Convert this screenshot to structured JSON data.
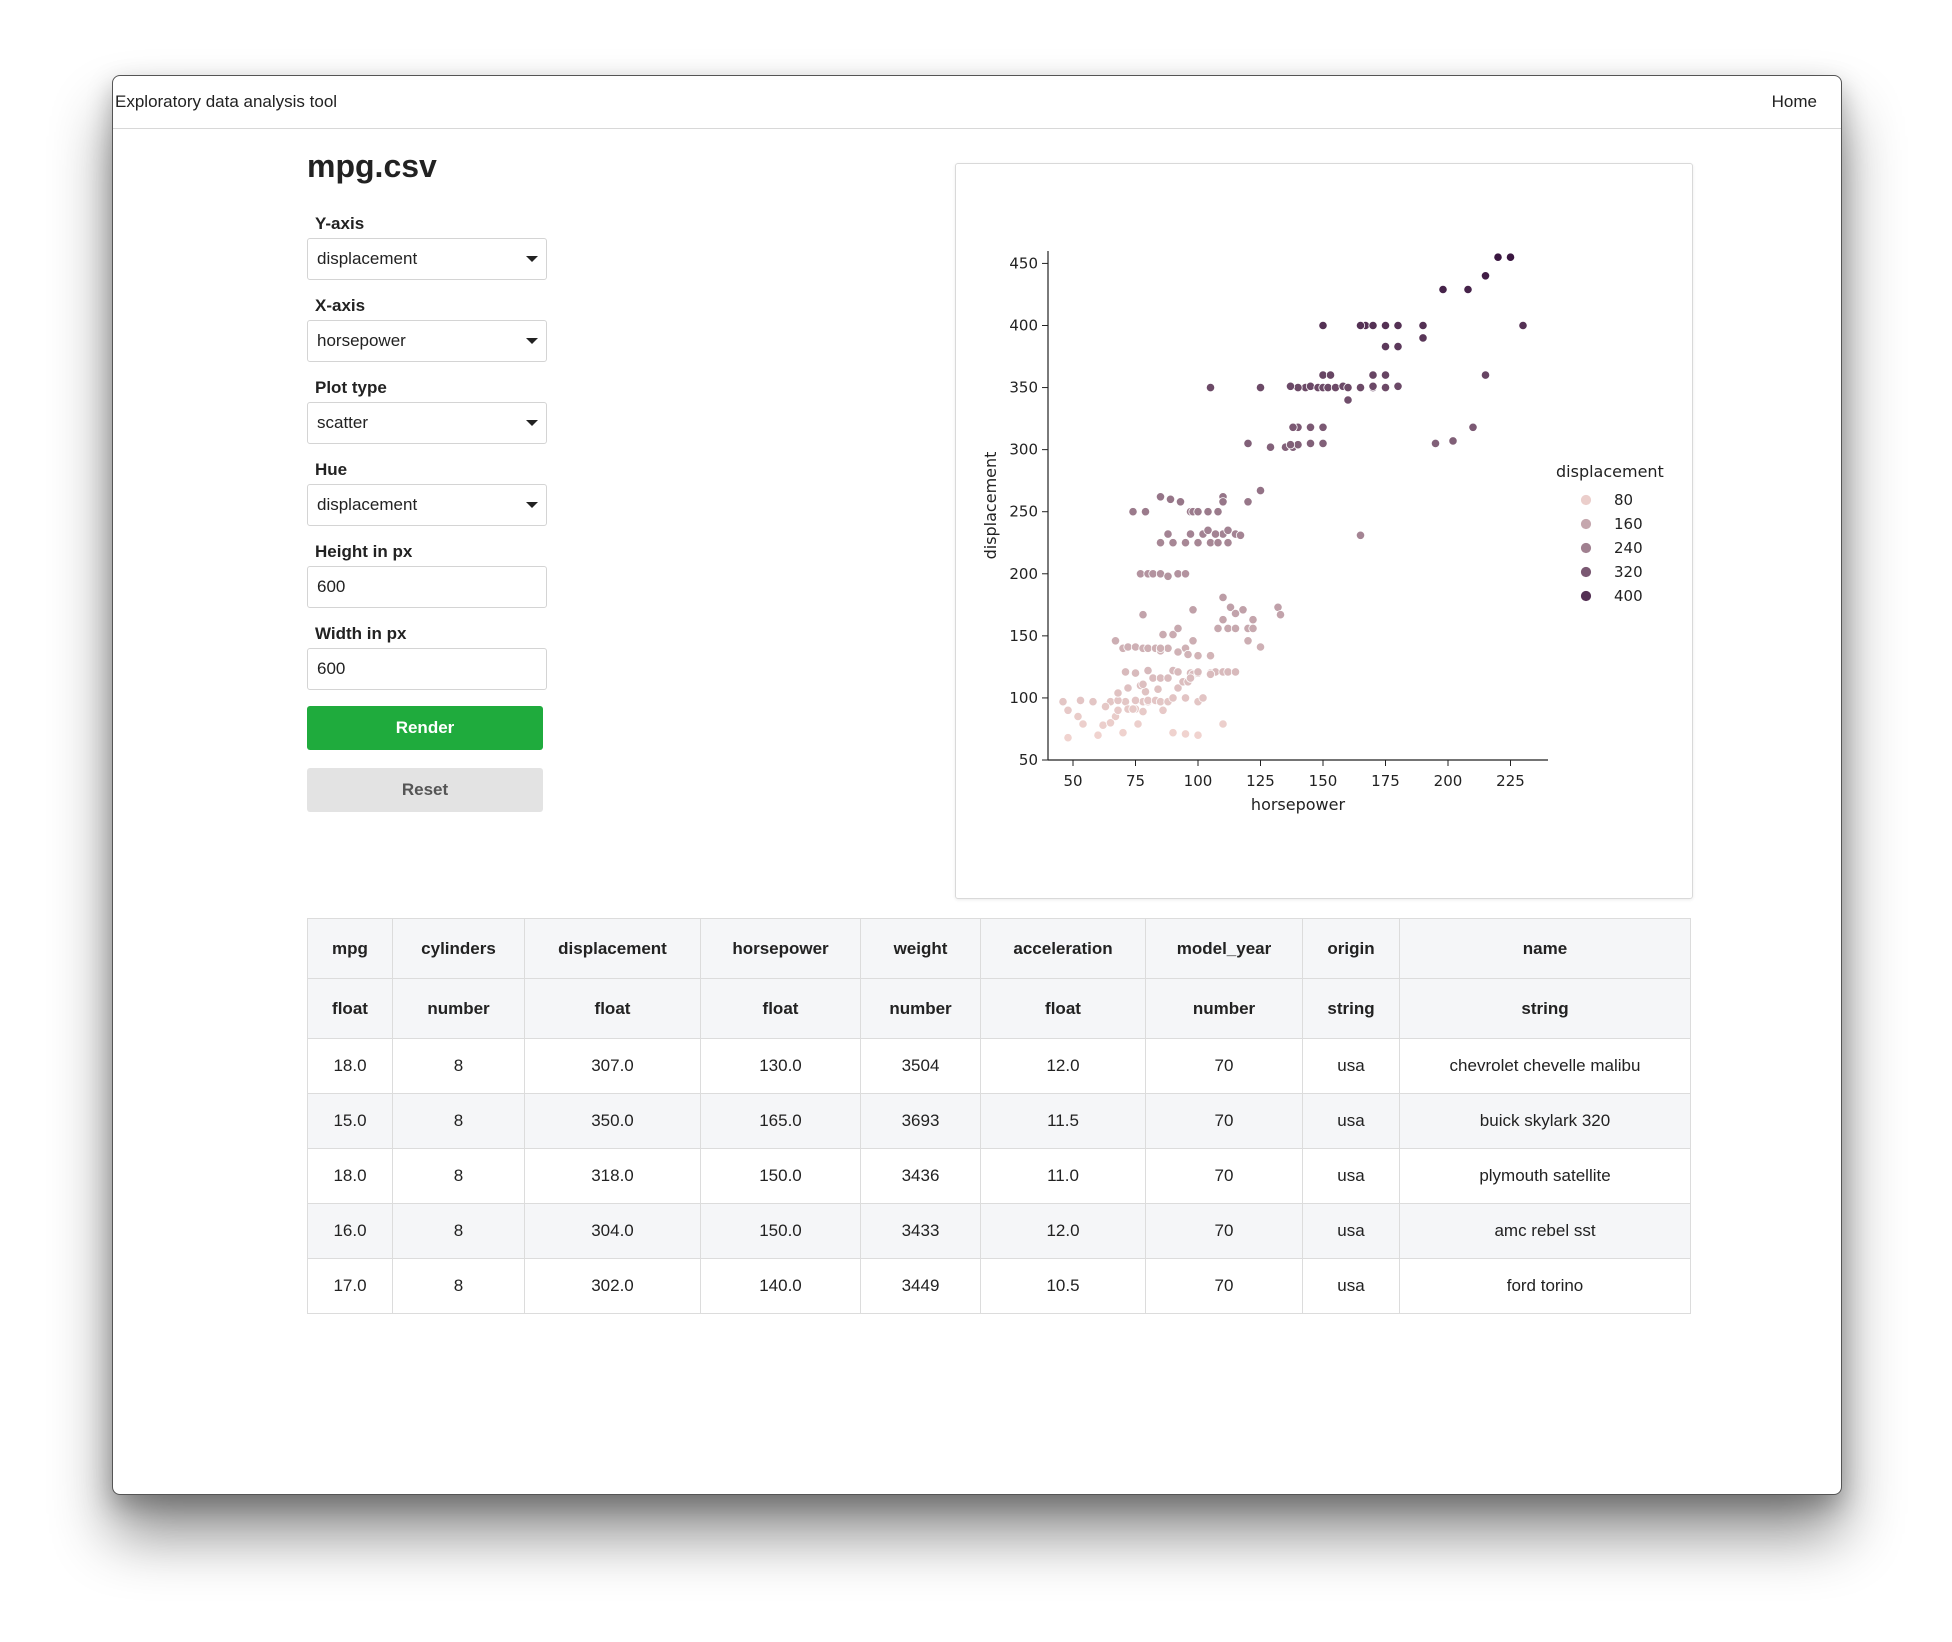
{
  "app": {
    "title": "Exploratory data analysis tool",
    "home_label": "Home"
  },
  "page": {
    "title": "mpg.csv"
  },
  "controls": {
    "y_axis": {
      "label": "Y-axis",
      "value": "displacement"
    },
    "x_axis": {
      "label": "X-axis",
      "value": "horsepower"
    },
    "plot_type": {
      "label": "Plot type",
      "value": "scatter"
    },
    "hue": {
      "label": "Hue",
      "value": "displacement"
    },
    "height": {
      "label": "Height in px",
      "value": "600"
    },
    "width": {
      "label": "Width in px",
      "value": "600"
    },
    "render_label": "Render",
    "reset_label": "Reset"
  },
  "table": {
    "columns": [
      {
        "name": "mpg",
        "type": "float"
      },
      {
        "name": "cylinders",
        "type": "number"
      },
      {
        "name": "displacement",
        "type": "float"
      },
      {
        "name": "horsepower",
        "type": "float"
      },
      {
        "name": "weight",
        "type": "number"
      },
      {
        "name": "acceleration",
        "type": "float"
      },
      {
        "name": "model_year",
        "type": "number"
      },
      {
        "name": "origin",
        "type": "string"
      },
      {
        "name": "name",
        "type": "string"
      }
    ],
    "rows": [
      [
        "18.0",
        "8",
        "307.0",
        "130.0",
        "3504",
        "12.0",
        "70",
        "usa",
        "chevrolet chevelle malibu"
      ],
      [
        "15.0",
        "8",
        "350.0",
        "165.0",
        "3693",
        "11.5",
        "70",
        "usa",
        "buick skylark 320"
      ],
      [
        "18.0",
        "8",
        "318.0",
        "150.0",
        "3436",
        "11.0",
        "70",
        "usa",
        "plymouth satellite"
      ],
      [
        "16.0",
        "8",
        "304.0",
        "150.0",
        "3433",
        "12.0",
        "70",
        "usa",
        "amc rebel sst"
      ],
      [
        "17.0",
        "8",
        "302.0",
        "140.0",
        "3449",
        "10.5",
        "70",
        "usa",
        "ford torino"
      ]
    ]
  },
  "chart_data": {
    "type": "scatter",
    "xlabel": "horsepower",
    "ylabel": "displacement",
    "xlim": [
      40,
      240
    ],
    "ylim": [
      50,
      460
    ],
    "xticks": [
      50,
      75,
      100,
      125,
      150,
      175,
      200,
      225
    ],
    "yticks": [
      50,
      100,
      150,
      200,
      250,
      300,
      350,
      400,
      450
    ],
    "grid": false,
    "hue": "displacement",
    "legend": {
      "title": "displacement",
      "placement": "right",
      "entries": [
        {
          "label": "80",
          "value": 80
        },
        {
          "label": "160",
          "value": 160
        },
        {
          "label": "240",
          "value": 240
        },
        {
          "label": "320",
          "value": 320
        },
        {
          "label": "400",
          "value": 400
        }
      ]
    },
    "color_low": "#f0d3cf",
    "color_high": "#3a1640",
    "points": [
      [
        46,
        97
      ],
      [
        48,
        90
      ],
      [
        52,
        85
      ],
      [
        53,
        98
      ],
      [
        54,
        79
      ],
      [
        58,
        97
      ],
      [
        60,
        70
      ],
      [
        65,
        97
      ],
      [
        48,
        68
      ],
      [
        67,
        85
      ],
      [
        68,
        90
      ],
      [
        70,
        72
      ],
      [
        71,
        97
      ],
      [
        75,
        91
      ],
      [
        76,
        79
      ],
      [
        78,
        97
      ],
      [
        80,
        97
      ],
      [
        62,
        78
      ],
      [
        63,
        93
      ],
      [
        65,
        80
      ],
      [
        68,
        98
      ],
      [
        71,
        121
      ],
      [
        72,
        91
      ],
      [
        74,
        91
      ],
      [
        75,
        98
      ],
      [
        77,
        110
      ],
      [
        78,
        89
      ],
      [
        79,
        105
      ],
      [
        80,
        98
      ],
      [
        83,
        98
      ],
      [
        84,
        107
      ],
      [
        85,
        97
      ],
      [
        86,
        90
      ],
      [
        88,
        97
      ],
      [
        90,
        100
      ],
      [
        92,
        108
      ],
      [
        95,
        100
      ],
      [
        97,
        120
      ],
      [
        98,
        119
      ],
      [
        100,
        97
      ],
      [
        100,
        120
      ],
      [
        102,
        100
      ],
      [
        105,
        120
      ],
      [
        107,
        121
      ],
      [
        110,
        121
      ],
      [
        112,
        121
      ],
      [
        115,
        121
      ],
      [
        68,
        104
      ],
      [
        72,
        108
      ],
      [
        75,
        120
      ],
      [
        78,
        111
      ],
      [
        80,
        122
      ],
      [
        82,
        116
      ],
      [
        85,
        116
      ],
      [
        88,
        116
      ],
      [
        90,
        122
      ],
      [
        92,
        121
      ],
      [
        94,
        113
      ],
      [
        96,
        113
      ],
      [
        97,
        116
      ],
      [
        100,
        121
      ],
      [
        105,
        119
      ],
      [
        90,
        72
      ],
      [
        95,
        71
      ],
      [
        100,
        70
      ],
      [
        110,
        79
      ],
      [
        67,
        146
      ],
      [
        70,
        140
      ],
      [
        72,
        141
      ],
      [
        75,
        141
      ],
      [
        78,
        140
      ],
      [
        80,
        140
      ],
      [
        83,
        140
      ],
      [
        85,
        138
      ],
      [
        86,
        151
      ],
      [
        88,
        140
      ],
      [
        90,
        151
      ],
      [
        92,
        156
      ],
      [
        95,
        140
      ],
      [
        98,
        146
      ],
      [
        100,
        134
      ],
      [
        105,
        134
      ],
      [
        108,
        156
      ],
      [
        110,
        163
      ],
      [
        112,
        156
      ],
      [
        115,
        156
      ],
      [
        118,
        171
      ],
      [
        120,
        146
      ],
      [
        122,
        163
      ],
      [
        125,
        141
      ],
      [
        132,
        173
      ],
      [
        133,
        167
      ],
      [
        85,
        140
      ],
      [
        96,
        135
      ],
      [
        92,
        137
      ],
      [
        78,
        167
      ],
      [
        98,
        171
      ],
      [
        110,
        181
      ],
      [
        113,
        173
      ],
      [
        115,
        168
      ],
      [
        120,
        156
      ],
      [
        122,
        156
      ],
      [
        77,
        200
      ],
      [
        80,
        200
      ],
      [
        82,
        200
      ],
      [
        85,
        200
      ],
      [
        88,
        198
      ],
      [
        92,
        200
      ],
      [
        95,
        200
      ],
      [
        85,
        225
      ],
      [
        88,
        232
      ],
      [
        90,
        225
      ],
      [
        95,
        225
      ],
      [
        97,
        232
      ],
      [
        100,
        225
      ],
      [
        102,
        232
      ],
      [
        105,
        225
      ],
      [
        108,
        225
      ],
      [
        110,
        232
      ],
      [
        112,
        225
      ],
      [
        115,
        232
      ],
      [
        117,
        231
      ],
      [
        110,
        262
      ],
      [
        104,
        235
      ],
      [
        107,
        232
      ],
      [
        112,
        235
      ],
      [
        97,
        250
      ],
      [
        104,
        250
      ],
      [
        108,
        250
      ],
      [
        74,
        250
      ],
      [
        79,
        250
      ],
      [
        85,
        262
      ],
      [
        89,
        260
      ],
      [
        93,
        258
      ],
      [
        98,
        250
      ],
      [
        100,
        250
      ],
      [
        110,
        258
      ],
      [
        120,
        258
      ],
      [
        125,
        267
      ],
      [
        165,
        231
      ],
      [
        135,
        302
      ],
      [
        138,
        302
      ],
      [
        140,
        304
      ],
      [
        145,
        305
      ],
      [
        150,
        305
      ],
      [
        129,
        302
      ],
      [
        120,
        305
      ],
      [
        140,
        318
      ],
      [
        145,
        318
      ],
      [
        150,
        318
      ],
      [
        138,
        318
      ],
      [
        150,
        305
      ],
      [
        137,
        304
      ],
      [
        143,
        350
      ],
      [
        145,
        351
      ],
      [
        148,
        350
      ],
      [
        150,
        350
      ],
      [
        152,
        350
      ],
      [
        155,
        350
      ],
      [
        158,
        351
      ],
      [
        160,
        350
      ],
      [
        165,
        350
      ],
      [
        170,
        350
      ],
      [
        175,
        350
      ],
      [
        180,
        351
      ],
      [
        140,
        350
      ],
      [
        137,
        351
      ],
      [
        150,
        360
      ],
      [
        160,
        340
      ],
      [
        170,
        360
      ],
      [
        175,
        360
      ],
      [
        195,
        305
      ],
      [
        202,
        307
      ],
      [
        210,
        318
      ],
      [
        153,
        360
      ],
      [
        175,
        350
      ],
      [
        170,
        351
      ],
      [
        215,
        360
      ],
      [
        105,
        350
      ],
      [
        125,
        350
      ],
      [
        150,
        400
      ],
      [
        167,
        400
      ],
      [
        170,
        400
      ],
      [
        175,
        400
      ],
      [
        180,
        400
      ],
      [
        190,
        400
      ],
      [
        190,
        390
      ],
      [
        175,
        383
      ],
      [
        180,
        383
      ],
      [
        198,
        429
      ],
      [
        208,
        429
      ],
      [
        215,
        440
      ],
      [
        220,
        455
      ],
      [
        225,
        455
      ],
      [
        230,
        400
      ],
      [
        165,
        400
      ]
    ]
  }
}
